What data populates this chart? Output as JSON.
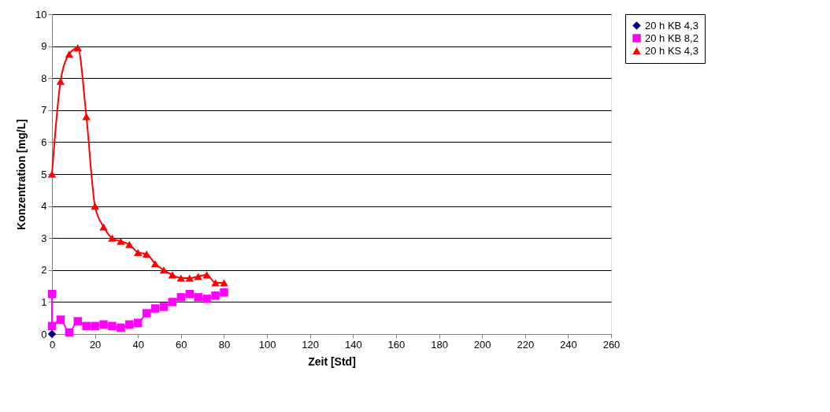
{
  "chart_data": {
    "type": "line",
    "xlabel": "Zeit [Std]",
    "ylabel": "Konzentration [mg/L]",
    "xlim": [
      0,
      260
    ],
    "xticks": [
      0,
      20,
      40,
      60,
      80,
      100,
      120,
      140,
      160,
      180,
      200,
      220,
      240,
      260
    ],
    "ylim": [
      0,
      10
    ],
    "yticks": [
      0,
      1,
      2,
      3,
      4,
      5,
      6,
      7,
      8,
      9,
      10
    ],
    "grid": "y",
    "legend": "right",
    "series": [
      {
        "name": "20 h KB 4,3",
        "color": "#000080",
        "marker": "diamond",
        "x": [
          0
        ],
        "values": [
          0
        ]
      },
      {
        "name": "20 h KB 8,2",
        "color": "#ff00ff",
        "marker": "square",
        "x": [
          0,
          0,
          4,
          8,
          12,
          16,
          20,
          24,
          28,
          32,
          36,
          40,
          44,
          48,
          52,
          56,
          60,
          64,
          68,
          72,
          76,
          80
        ],
        "values": [
          1.25,
          0.25,
          0.45,
          0.05,
          0.4,
          0.25,
          0.25,
          0.3,
          0.25,
          0.2,
          0.3,
          0.35,
          0.65,
          0.8,
          0.85,
          1.0,
          1.15,
          1.25,
          1.15,
          1.1,
          1.2,
          1.3
        ]
      },
      {
        "name": "20 h KS 4,3",
        "color": "#ff0000",
        "marker": "triangle",
        "x": [
          0,
          4,
          8,
          12,
          16,
          20,
          24,
          28,
          32,
          36,
          40,
          44,
          48,
          52,
          56,
          60,
          64,
          68,
          72,
          76,
          80
        ],
        "values": [
          5.0,
          7.9,
          8.75,
          8.95,
          6.8,
          4.0,
          3.35,
          3.0,
          2.9,
          2.8,
          2.55,
          2.5,
          2.2,
          2.0,
          1.85,
          1.75,
          1.75,
          1.8,
          1.85,
          1.6,
          1.6
        ]
      }
    ]
  }
}
